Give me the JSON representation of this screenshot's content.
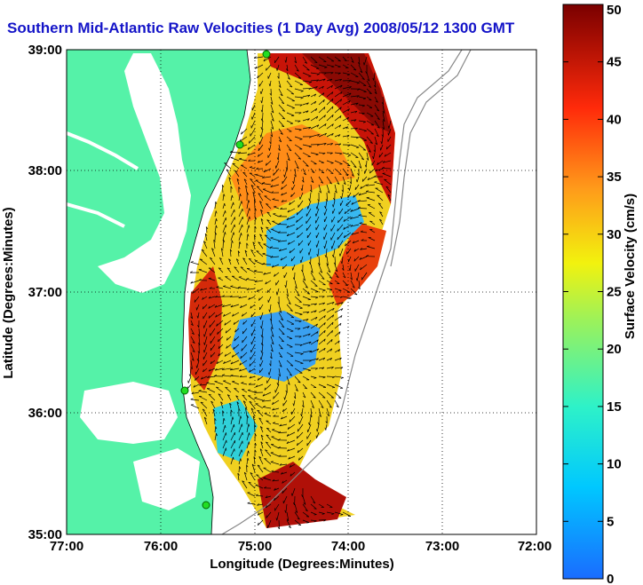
{
  "title": "Southern Mid-Atlantic Raw Velocities (1 Day Avg) 2008/05/12 1300 GMT",
  "xaxis": {
    "label": "Longitude (Degrees:Minutes)",
    "ticks": [
      "77:00",
      "76:00",
      "75:00",
      "74:00",
      "73:00",
      "72:00"
    ]
  },
  "yaxis": {
    "label": "Latitude (Degrees:Minutes)",
    "ticks": [
      "39:00",
      "38:00",
      "37:00",
      "36:00",
      "35:00"
    ]
  },
  "colorbar": {
    "label": "Surface Velocity (cm/s)",
    "ticks": [
      "50",
      "45",
      "40",
      "35",
      "30",
      "25",
      "20",
      "15",
      "10",
      "5",
      "0"
    ],
    "colors": [
      "#0000ff",
      "#00ffff",
      "#ffff00",
      "#ff0000",
      "#800000"
    ]
  },
  "colors": {
    "land": "#55f2a8",
    "title": "#1414c8",
    "station": "#22dd22"
  }
}
